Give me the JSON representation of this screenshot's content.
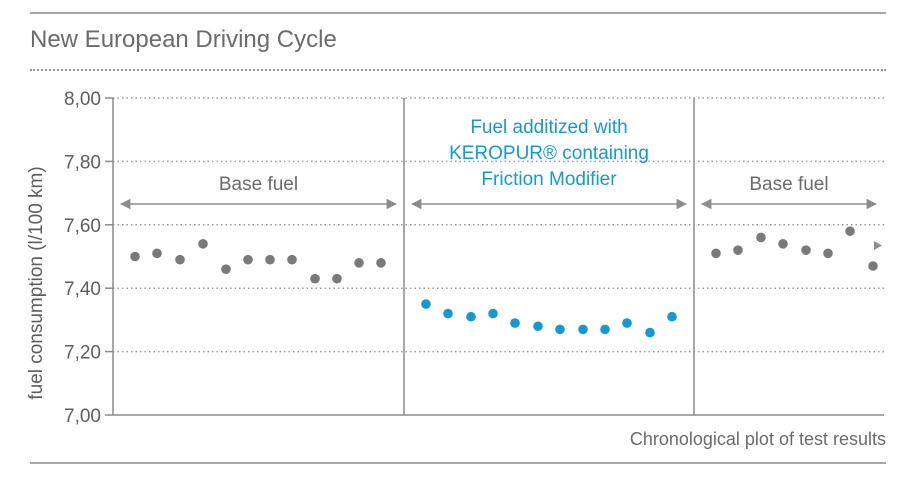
{
  "chart_data": {
    "type": "scatter",
    "title": "New European Driving Cycle",
    "xlabel": "Chronological plot of test results",
    "ylabel": "fuel consumption (l/100 km)",
    "ylim": [
      7.0,
      8.0
    ],
    "yticks": [
      "7,00",
      "7,20",
      "7,40",
      "7,60",
      "7,80",
      "8,00"
    ],
    "grid": true,
    "colors": {
      "base": "#7a7a7a",
      "additized": "#1499d0",
      "axis": "#8c8c8c"
    },
    "sections": [
      {
        "name": "base-fuel-1",
        "label": [
          "Base fuel"
        ],
        "color": "base",
        "values": [
          7.5,
          7.51,
          7.49,
          7.54,
          7.46,
          7.49,
          7.49,
          7.49,
          7.43,
          7.43,
          7.48,
          7.48
        ]
      },
      {
        "name": "additized-fuel",
        "label": [
          "Fuel additized with",
          "KEROPUR® containing",
          "Friction Modifier"
        ],
        "color": "additized",
        "values": [
          7.35,
          7.32,
          7.31,
          7.32,
          7.29,
          7.28,
          7.27,
          7.27,
          7.27,
          7.29,
          7.26,
          7.31
        ]
      },
      {
        "name": "base-fuel-2",
        "label": [
          "Base fuel"
        ],
        "color": "base",
        "values": [
          7.51,
          7.52,
          7.56,
          7.54,
          7.52,
          7.51,
          7.58,
          7.47
        ]
      }
    ]
  }
}
